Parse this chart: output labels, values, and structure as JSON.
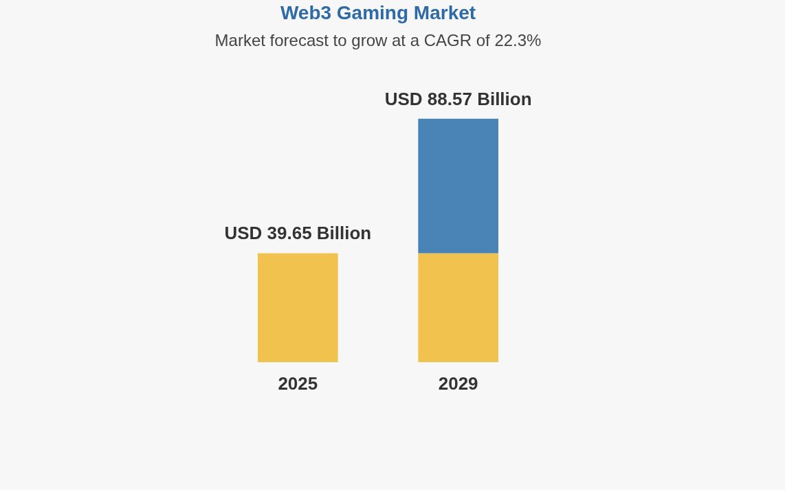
{
  "chart_data": {
    "type": "bar",
    "title": "Web3 Gaming Market",
    "subtitle": "Market forecast to grow at a CAGR of 22.3%",
    "categories": [
      "2025",
      "2029"
    ],
    "stacked": true,
    "series": [
      {
        "color": "#f2c24f",
        "values": [
          39.65,
          39.65
        ],
        "value_labels": [
          "USD 39.65 Billion",
          null
        ]
      },
      {
        "color": "#4a84b6",
        "values": [
          null,
          48.92
        ]
      }
    ],
    "totals": [
      null,
      "USD 88.57 Billion"
    ]
  }
}
